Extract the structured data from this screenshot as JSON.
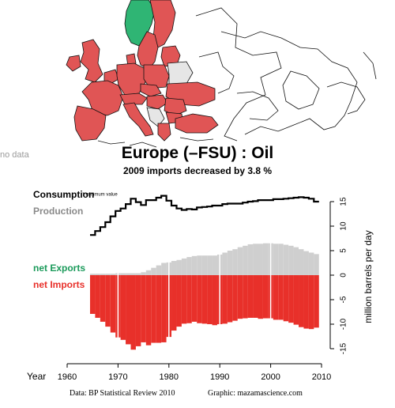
{
  "map": {
    "no_data_label": "no data",
    "colors": {
      "importer": "#e05555",
      "exporter": "#2fb574",
      "no_data": "#e6e6e6",
      "border": "#111111"
    }
  },
  "chart_data": {
    "type": "area",
    "title": "Europe (–FSU) :  Oil",
    "subtitle": "2009 imports decreased by 3.8 %",
    "xlabel": "Year",
    "ylabel": "million barrels per day",
    "xlim": [
      1960,
      2010
    ],
    "ylim": [
      -16,
      17
    ],
    "x_ticks": [
      1960,
      1970,
      1980,
      1990,
      2000,
      2010
    ],
    "y_ticks": [
      -15,
      -10,
      -5,
      0,
      5,
      10,
      15
    ],
    "annotation": "minimum value",
    "legend": {
      "consumption": "Consumption",
      "production": "Production",
      "net_exports": "net Exports",
      "net_imports": "net Imports"
    },
    "colors": {
      "consumption": "#000000",
      "production": "#cfcfcf",
      "net_exports": "#1a9a5a",
      "net_imports": "#e8302a",
      "production_label": "#8a8a8a"
    },
    "years": [
      1965,
      1966,
      1967,
      1968,
      1969,
      1970,
      1971,
      1972,
      1973,
      1974,
      1975,
      1976,
      1977,
      1978,
      1979,
      1980,
      1981,
      1982,
      1983,
      1984,
      1985,
      1986,
      1987,
      1988,
      1989,
      1990,
      1991,
      1992,
      1993,
      1994,
      1995,
      1996,
      1997,
      1998,
      1999,
      2000,
      2001,
      2002,
      2003,
      2004,
      2005,
      2006,
      2007,
      2008,
      2009
    ],
    "series": [
      {
        "name": "Consumption",
        "values": [
          8.2,
          9.0,
          9.8,
          10.8,
          12.0,
          13.1,
          13.6,
          14.5,
          15.6,
          14.9,
          14.3,
          15.3,
          15.3,
          15.8,
          16.2,
          15.2,
          14.2,
          13.6,
          13.3,
          13.5,
          13.4,
          13.8,
          13.9,
          14.0,
          14.2,
          14.2,
          14.5,
          14.6,
          14.6,
          14.6,
          14.8,
          15.0,
          15.1,
          15.3,
          15.3,
          15.3,
          15.5,
          15.5,
          15.6,
          15.7,
          15.8,
          15.9,
          15.8,
          15.6,
          15.0
        ]
      },
      {
        "name": "Production",
        "values": [
          0.3,
          0.3,
          0.3,
          0.3,
          0.3,
          0.4,
          0.4,
          0.4,
          0.4,
          0.4,
          0.6,
          1.0,
          1.5,
          2.0,
          2.5,
          2.6,
          2.9,
          3.1,
          3.4,
          3.7,
          3.9,
          4.0,
          4.0,
          4.0,
          4.0,
          4.2,
          4.6,
          5.0,
          5.3,
          5.7,
          6.0,
          6.3,
          6.4,
          6.4,
          6.5,
          6.5,
          6.4,
          6.4,
          6.2,
          6.0,
          5.7,
          5.3,
          4.9,
          4.6,
          4.3
        ]
      }
    ]
  },
  "footer": {
    "source_label": "Data: BP Statistical Review 2010",
    "graphic_label": "Graphic: mazamascience.com"
  }
}
